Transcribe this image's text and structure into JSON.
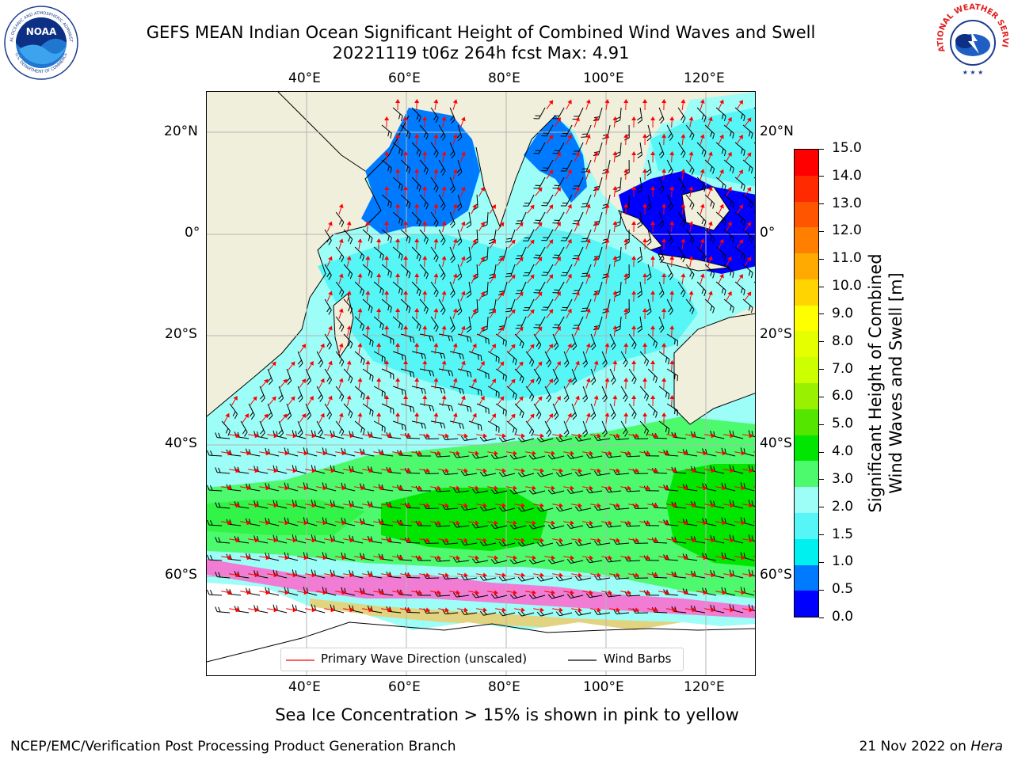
{
  "header": {
    "title_line1": "GEFS MEAN Indian Ocean Significant Height of Combined Wind Waves and Swell",
    "title_line2": "20221119 t06z 264h fcst   Max: 4.91"
  },
  "axes": {
    "lon_ticks": [
      "40°E",
      "60°E",
      "80°E",
      "100°E",
      "120°E"
    ],
    "lat_ticks_left": [
      "20°N",
      "0°",
      "20°S",
      "40°S",
      "60°S"
    ],
    "lat_ticks_right": [
      "20°N",
      "0°",
      "20°S",
      "40°S",
      "60°S"
    ]
  },
  "colorbar": {
    "label_line1": "Significant Height of Combined",
    "label_line2": "Wind Waves and Swell [m]",
    "ticks": [
      "15.0",
      "14.0",
      "13.0",
      "12.0",
      "11.0",
      "10.0",
      "9.0",
      "8.0",
      "7.0",
      "6.0",
      "5.0",
      "4.0",
      "3.0",
      "2.0",
      "1.5",
      "1.0",
      "0.5",
      "0.0"
    ],
    "colors": [
      "#ff0000",
      "#ff2a00",
      "#ff5500",
      "#ff7f00",
      "#ffaa00",
      "#ffd400",
      "#ffff00",
      "#e6ff00",
      "#ccff00",
      "#99f000",
      "#55e600",
      "#00e600",
      "#4dfa6e",
      "#9dfdf7",
      "#56f6f7",
      "#00f0f0",
      "#007bff",
      "#0000ff"
    ]
  },
  "legend": {
    "wave_label": "Primary Wave Direction (unscaled)",
    "wind_label": "Wind Barbs",
    "wave_color": "#ff0000",
    "wind_color": "#000000"
  },
  "notes": {
    "sea_ice": "Sea Ice Concentration > 15% is shown in pink to yellow"
  },
  "footer": {
    "left": "NCEP/EMC/Verification Post Processing Product Generation Branch",
    "date": "21 Nov 2022 on ",
    "host": "Hera"
  },
  "logos": {
    "noaa_text": "NOAA",
    "nws_text": "NATIONAL WEATHER SERVICE",
    "noaa_ring_text": "NATIONAL OCEANIC AND ATMOSPHERIC ADMINISTRATION",
    "noaa_ring_text_bottom": "U.S. DEPARTMENT OF COMMERCE"
  }
}
